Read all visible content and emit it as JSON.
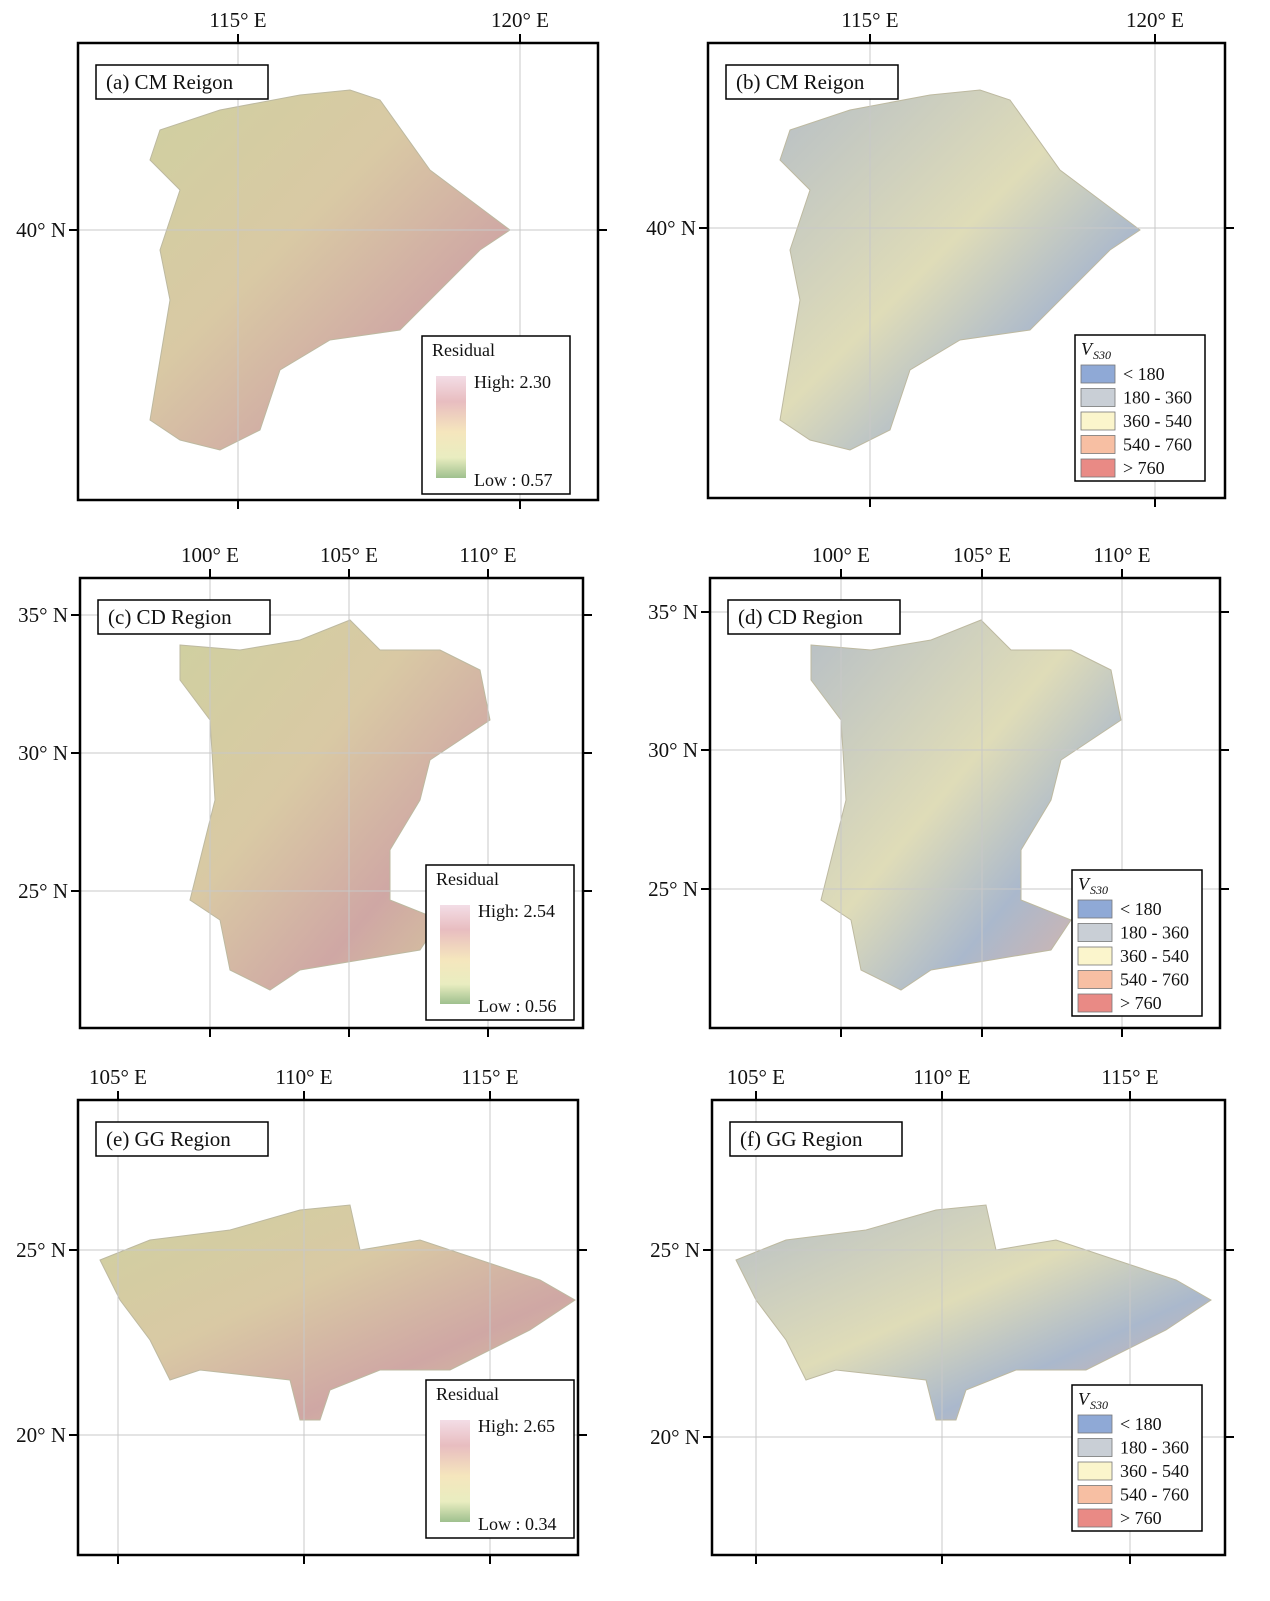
{
  "panels": [
    {
      "title": "(a) CM Reigon",
      "x_ticks": [
        "115° E",
        "120° E"
      ],
      "y_ticks": [
        "40° N"
      ],
      "legend": {
        "title": "Residual",
        "high": "High: 2.30",
        "low": "Low : 0.57"
      }
    },
    {
      "title": "(b) CM Reigon",
      "x_ticks": [
        "115° E",
        "120° E"
      ],
      "y_ticks": [
        "40° N"
      ],
      "legend": {
        "title": "V",
        "title_sub": "S30",
        "items": [
          "< 180",
          "180 - 360",
          "360 - 540",
          "540 - 760",
          "> 760"
        ]
      }
    },
    {
      "title": "(c) CD Region",
      "x_ticks": [
        "100° E",
        "105° E",
        "110° E"
      ],
      "y_ticks": [
        "35° N",
        "30° N",
        "25° N"
      ],
      "legend": {
        "title": "Residual",
        "high": "High: 2.54",
        "low": "Low : 0.56"
      }
    },
    {
      "title": "(d) CD Region",
      "x_ticks": [
        "100° E",
        "105° E",
        "110° E"
      ],
      "y_ticks": [
        "35° N",
        "30° N",
        "25° N"
      ],
      "legend": {
        "title": "V",
        "title_sub": "S30",
        "items": [
          "< 180",
          "180 - 360",
          "360 - 540",
          "540 - 760",
          "> 760"
        ]
      }
    },
    {
      "title": "(e) GG Region",
      "x_ticks": [
        "105° E",
        "110° E",
        "115° E"
      ],
      "y_ticks": [
        "25° N",
        "20° N"
      ],
      "legend": {
        "title": "Residual",
        "high": "High: 2.65",
        "low": "Low : 0.34"
      }
    },
    {
      "title": "(f) GG Region",
      "x_ticks": [
        "105° E",
        "110° E",
        "115° E"
      ],
      "y_ticks": [
        "25° N",
        "20° N"
      ],
      "legend": {
        "title": "V",
        "title_sub": "S30",
        "items": [
          "< 180",
          "180 - 360",
          "360 - 540",
          "540 - 760",
          "> 760"
        ]
      }
    }
  ]
}
